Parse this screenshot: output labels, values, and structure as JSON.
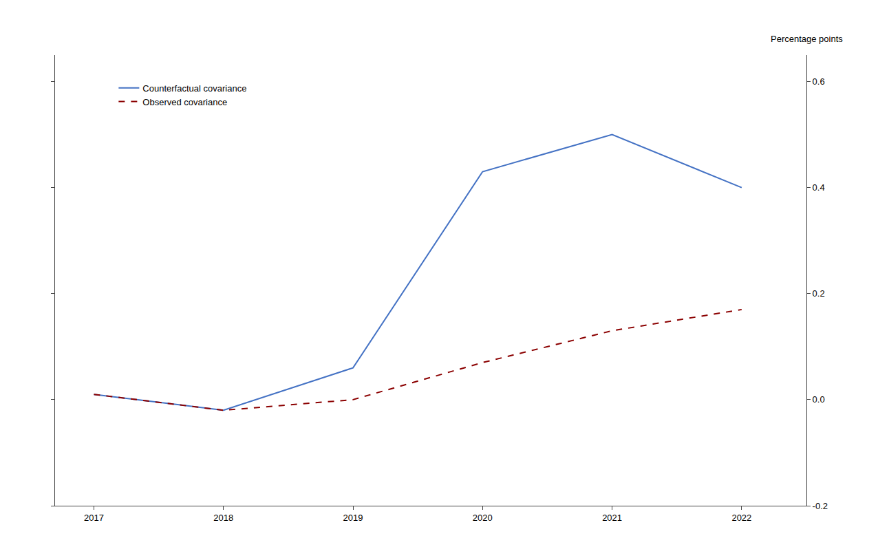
{
  "chart_data": {
    "type": "line",
    "x": [
      2017,
      2018,
      2019,
      2020,
      2021,
      2022
    ],
    "series": [
      {
        "name": "Counterfactual covariance",
        "color": "#4472C4",
        "line_style": "solid",
        "values": [
          0.01,
          -0.02,
          0.06,
          0.43,
          0.5,
          0.4
        ]
      },
      {
        "name": "Observed covariance",
        "color": "#8B0000",
        "line_style": "dashed",
        "values": [
          0.01,
          -0.02,
          0.0,
          0.07,
          0.13,
          0.17
        ]
      }
    ],
    "ylabel": "Percentage points",
    "xlim": [
      2016.7,
      2022.5
    ],
    "xticks": [
      2017,
      2018,
      2019,
      2020,
      2021,
      2022
    ],
    "ylim": [
      -0.2,
      0.65
    ],
    "yticks": [
      -0.2,
      {
        "value": 0.0,
        "label": "0.0"
      },
      0.2,
      0.4,
      0.6
    ],
    "grid": false,
    "legend": "upper left"
  }
}
